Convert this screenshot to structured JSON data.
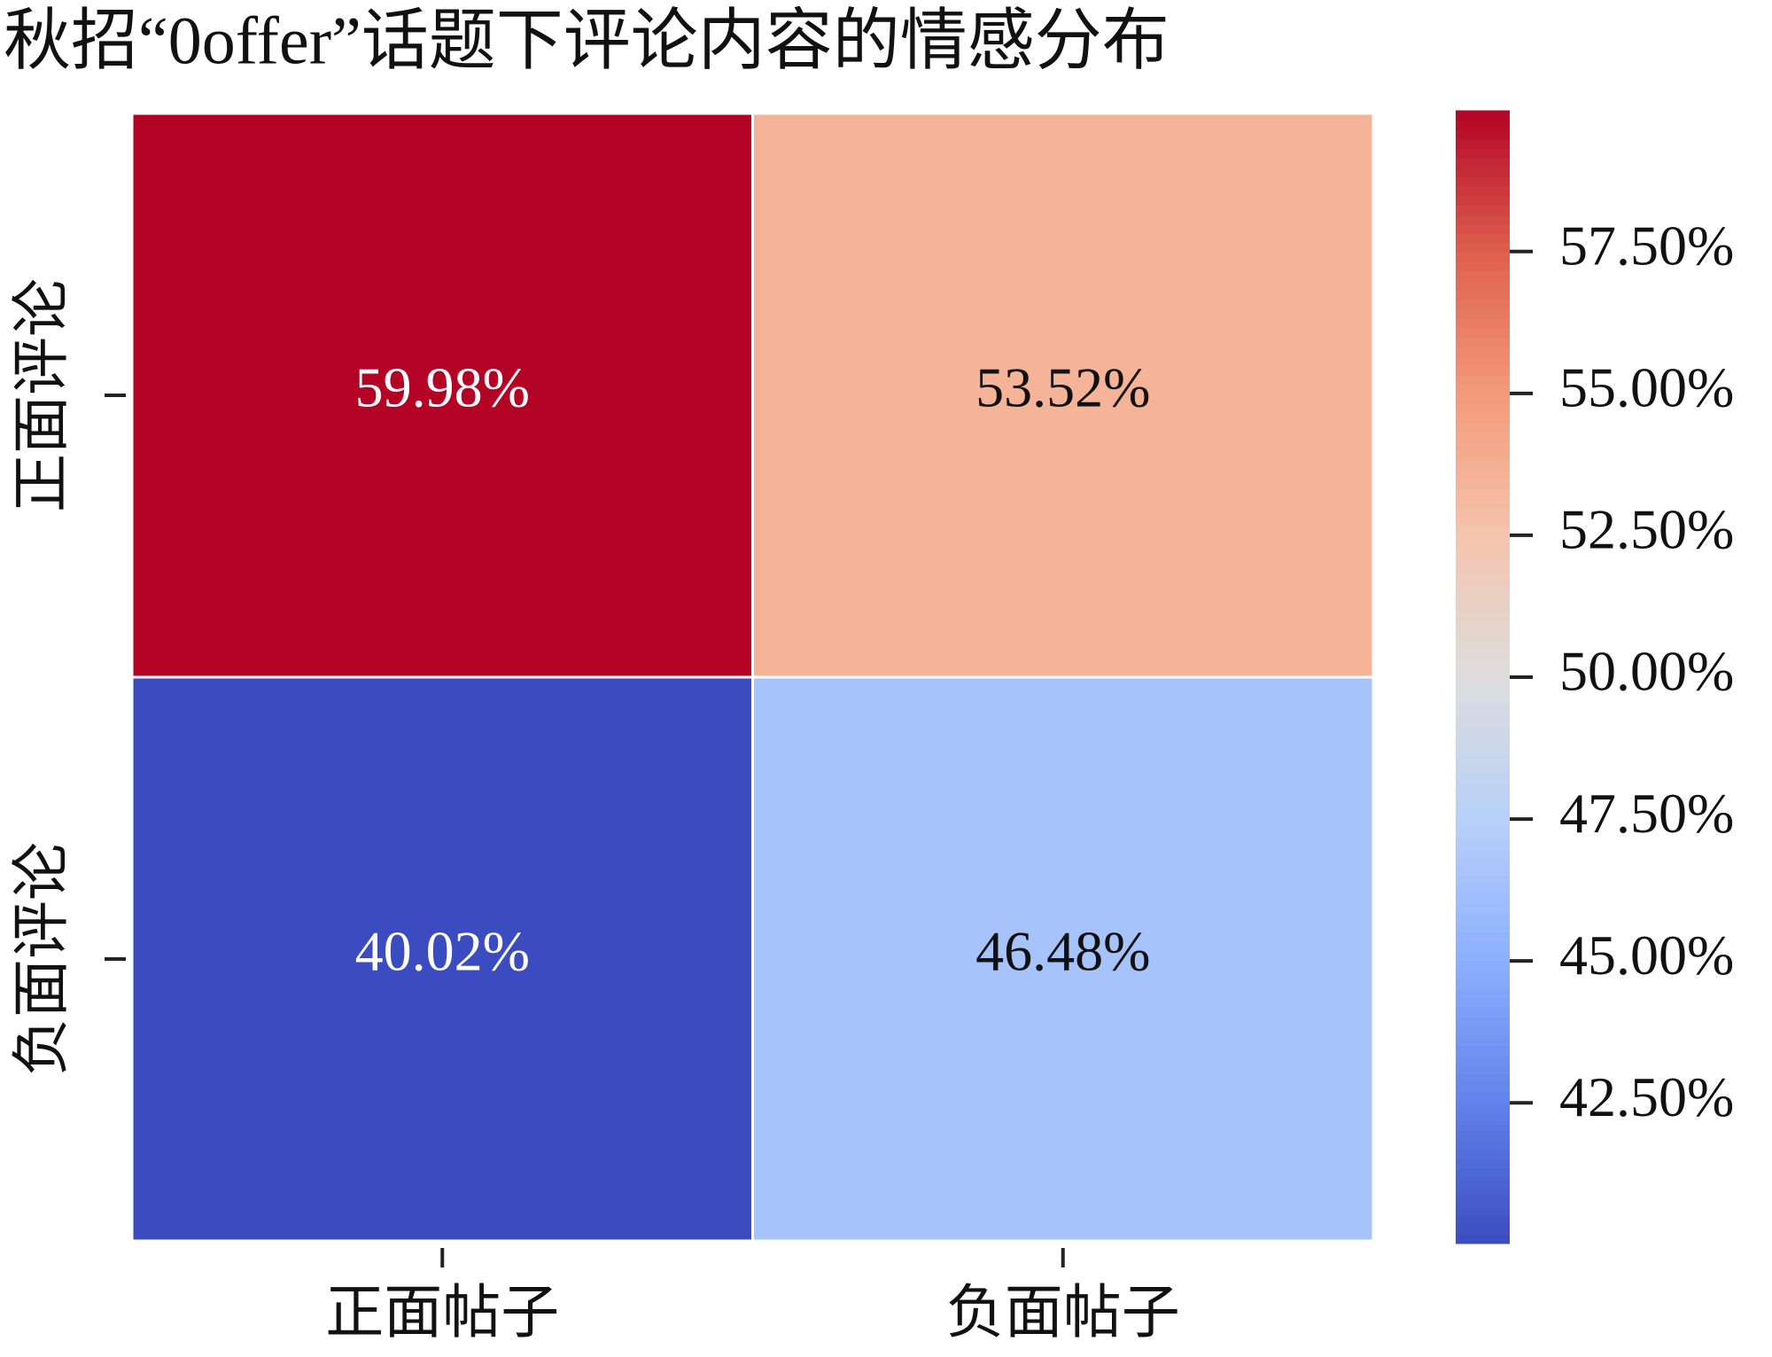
{
  "chart_data": {
    "type": "heatmap",
    "title": "秋招“0offer”话题下评论内容的情感分布",
    "x_categories": [
      "正面帖子",
      "负面帖子"
    ],
    "y_categories": [
      "正面评论",
      "负面评论"
    ],
    "values": [
      [
        59.98,
        53.52
      ],
      [
        40.02,
        46.48
      ]
    ],
    "value_labels": [
      [
        "59.98%",
        "53.52%"
      ],
      [
        "40.02%",
        "46.48%"
      ]
    ],
    "colormap": "coolwarm",
    "colorbar_lim": [
      40.02,
      59.98
    ],
    "colorbar_ticks": [
      {
        "value": 42.5,
        "label": "42.50%"
      },
      {
        "value": 45,
        "label": "45.00%"
      },
      {
        "value": 47.5,
        "label": "47.50%"
      },
      {
        "value": 50,
        "label": "50.00%"
      },
      {
        "value": 52.5,
        "label": "52.50%"
      },
      {
        "value": 55,
        "label": "55.00%"
      },
      {
        "value": 57.5,
        "label": "57.50%"
      }
    ]
  }
}
